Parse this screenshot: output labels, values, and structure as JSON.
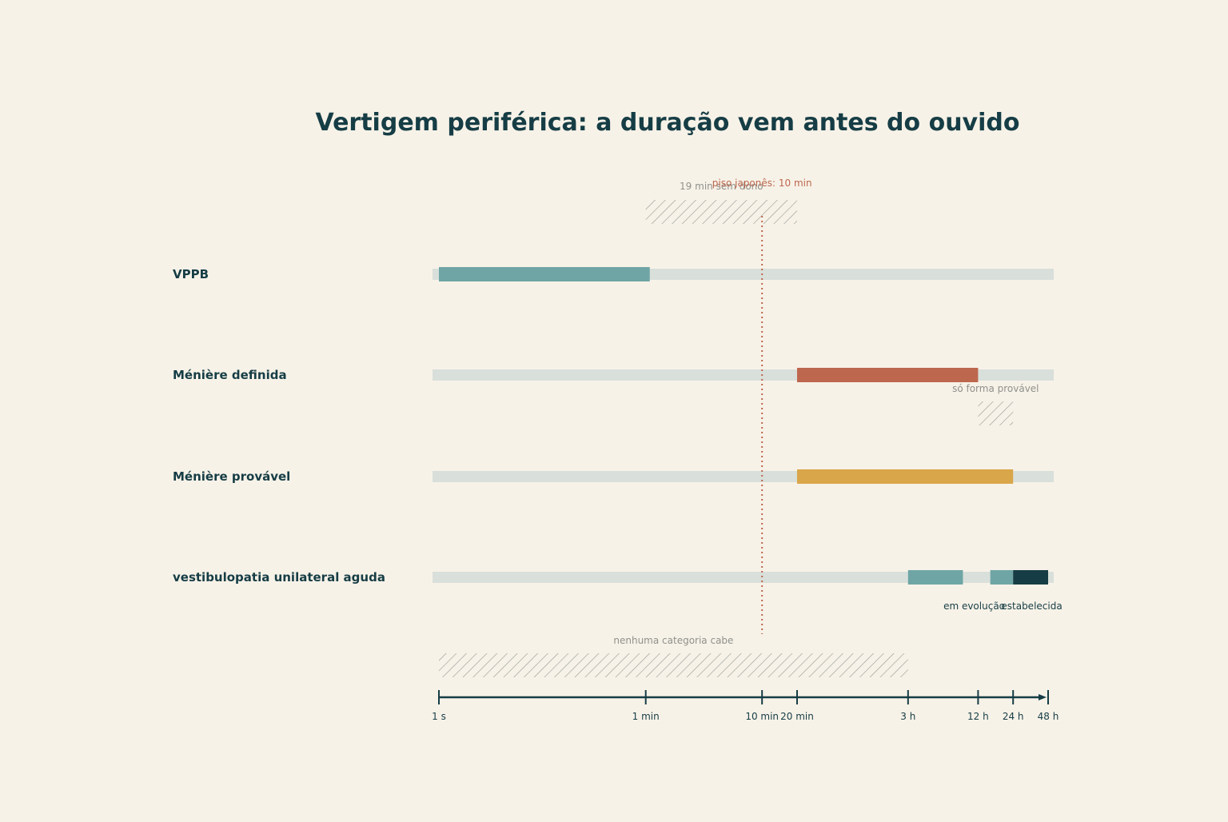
{
  "chart_data": {
    "type": "range-bar",
    "title": "Vertigem periférica: a duração vem antes do ouvido",
    "scale": "log",
    "x_ticks": [
      {
        "label": "1 s",
        "seconds": 1
      },
      {
        "label": "1 min",
        "seconds": 60
      },
      {
        "label": "10 min",
        "seconds": 600
      },
      {
        "label": "20 min",
        "seconds": 1200
      },
      {
        "label": "3 h",
        "seconds": 10800
      },
      {
        "label": "12 h",
        "seconds": 43200
      },
      {
        "label": "24 h",
        "seconds": 86400
      },
      {
        "label": "48 h",
        "seconds": 172800
      }
    ],
    "categories": [
      {
        "label": "VPPB",
        "segments": [
          {
            "from_s": 1,
            "to_s": 65,
            "color": "#6fa5a5"
          }
        ]
      },
      {
        "label": "Ménière definida",
        "segments": [
          {
            "from_s": 1200,
            "to_s": 43200,
            "color": "#bd674e"
          }
        ]
      },
      {
        "label": "Ménière provável",
        "segments": [
          {
            "from_s": 1200,
            "to_s": 86400,
            "color": "#d9a64a"
          }
        ]
      },
      {
        "label": "vestibulopatia unilateral aguda",
        "segments": [
          {
            "from_s": 10800,
            "to_s": 32000,
            "color": "#6fa5a5"
          },
          {
            "from_s": 55000,
            "to_s": 86400,
            "color": "#6fa5a5"
          },
          {
            "from_s": 86400,
            "to_s": 172800,
            "color": "#163d45"
          }
        ]
      }
    ],
    "sublabels": [
      {
        "text": "em evolução",
        "at_s": 40000
      },
      {
        "text": "estabelecida",
        "at_s": 125000
      }
    ],
    "reference_line": {
      "label": "piso japonês: 10 min",
      "at_s": 600
    },
    "gaps": [
      {
        "label": "19 min sem dono",
        "from_s": 60,
        "to_s": 1200
      },
      {
        "label": "só forma provável",
        "from_s": 43200,
        "to_s": 86400
      },
      {
        "label": "nenhuma categoria cabe",
        "from_s": 1,
        "to_s": 10800
      }
    ],
    "colors": {
      "background": "#f7f2e8",
      "ink": "#163d45",
      "track": "#d9dfda",
      "gap_hatch": "#9a9d97",
      "gap_text": "#8f918b",
      "reference": "#bd674e"
    }
  }
}
